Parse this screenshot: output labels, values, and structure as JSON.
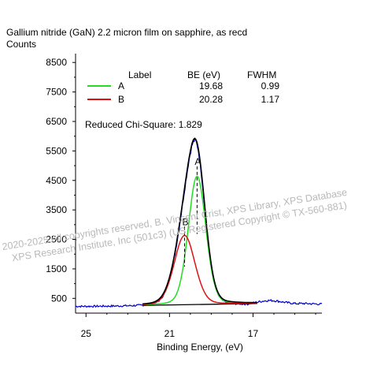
{
  "title": "Gallium nitride (GaN) 2.2 micron film on sapphire, as recd",
  "ylabel": "Counts",
  "chart_data": {
    "type": "line",
    "title": "Gallium nitride (GaN) 2.2 micron film on sapphire, as recd",
    "xlabel": "Binding Energy, (eV)",
    "ylabel": "Counts",
    "xlim": [
      25.5,
      13.7
    ],
    "ylim": [
      0,
      8800
    ],
    "x_reversed": true,
    "x_ticks": [
      25,
      21,
      17
    ],
    "y_ticks": [
      500,
      1500,
      2500,
      3500,
      4500,
      5500,
      6500,
      7500,
      8500
    ],
    "grid": false,
    "legend_position": "top-left",
    "table": {
      "headers": [
        "Label",
        "BE (eV)",
        "FWHM"
      ],
      "rows": [
        {
          "label": "A",
          "be": "19.68",
          "fwhm": "0.99",
          "color": "#22dd22"
        },
        {
          "label": "B",
          "be": "20.28",
          "fwhm": "1.17",
          "color": "#dd1111"
        }
      ]
    },
    "annotation": "Reduced Chi-Square: 1.829",
    "peak_labels": [
      "A",
      "B"
    ],
    "components": [
      {
        "label": "A",
        "center": 19.68,
        "fwhm": 0.99,
        "height": 4350,
        "color": "#22dd22"
      },
      {
        "label": "B",
        "center": 20.28,
        "fwhm": 1.17,
        "height": 2350,
        "color": "#dd1111"
      }
    ],
    "background_level": 120,
    "colors": {
      "data": "#0000cc",
      "envelope": "#000000",
      "baseline": "#000000",
      "axis": "#000000"
    }
  },
  "watermark": {
    "line1": "2020-2025 All copyrights reserved,  B. Vincent Crist,  XPS Library, XPS Database",
    "line2": "XPS Research Institute, Inc (501c3)  (US Registered Copyright © TX-560-881)"
  }
}
